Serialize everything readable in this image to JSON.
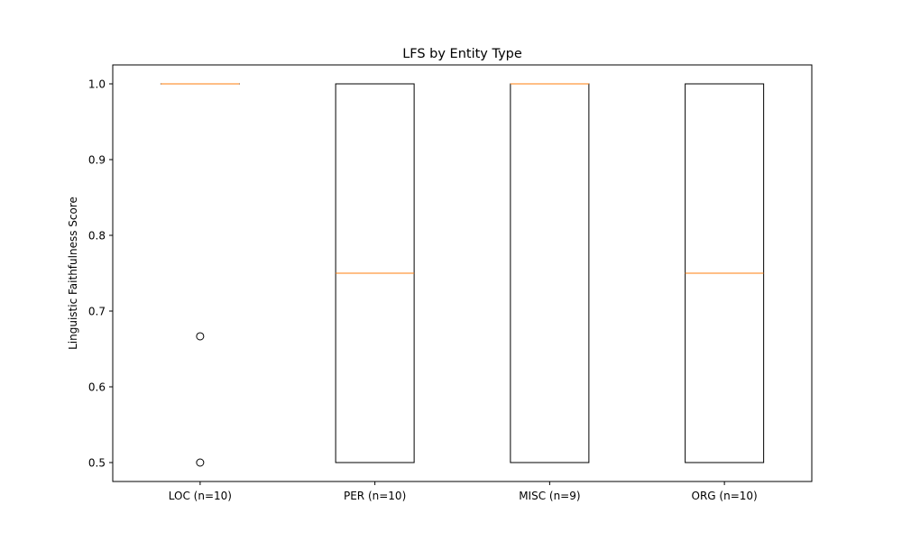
{
  "chart_data": {
    "type": "box",
    "title": "LFS by Entity Type",
    "xlabel": "",
    "ylabel": "Linguistic Faithfulness Score",
    "ylim": [
      0.475,
      1.025
    ],
    "yticks": [
      0.5,
      0.6,
      0.7,
      0.8,
      0.9,
      1.0
    ],
    "ytick_labels": [
      "0.5",
      "0.6",
      "0.7",
      "0.8",
      "0.9",
      "1.0"
    ],
    "grid": false,
    "categories": [
      "LOC (n=10)",
      "PER (n=10)",
      "MISC (n=9)",
      "ORG (n=10)"
    ],
    "boxes": [
      {
        "whisker_low": 1.0,
        "q1": 1.0,
        "median": 1.0,
        "q3": 1.0,
        "whisker_high": 1.0,
        "outliers": [
          0.6667,
          0.5
        ]
      },
      {
        "whisker_low": 0.5,
        "q1": 0.5,
        "median": 0.75,
        "q3": 1.0,
        "whisker_high": 1.0,
        "outliers": []
      },
      {
        "whisker_low": 0.5,
        "q1": 0.5,
        "median": 1.0,
        "q3": 1.0,
        "whisker_high": 1.0,
        "outliers": []
      },
      {
        "whisker_low": 0.5,
        "q1": 0.5,
        "median": 0.75,
        "q3": 1.0,
        "whisker_high": 1.0,
        "outliers": []
      }
    ],
    "colors": {
      "box": "#000000",
      "median": "#ff7f0e",
      "outlier": "#000000"
    }
  }
}
